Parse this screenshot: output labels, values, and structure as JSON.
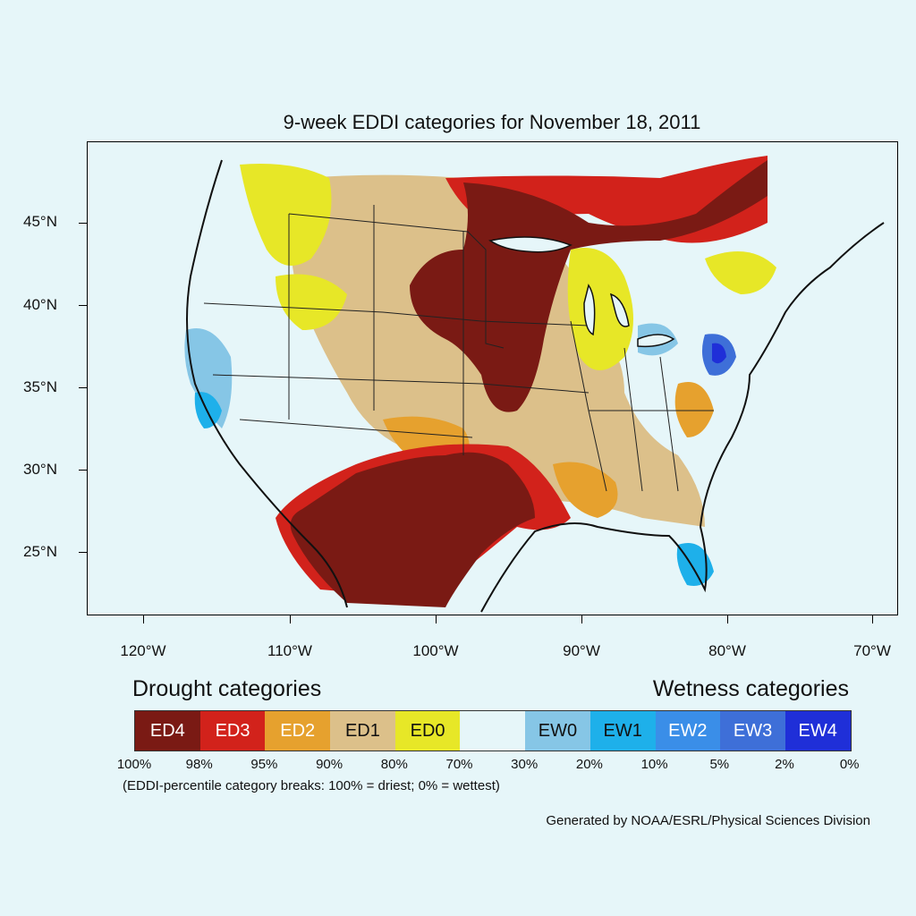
{
  "title": "9-week EDDI categories for November 18, 2011",
  "map": {
    "lat_labels": [
      "45°N",
      "40°N",
      "35°N",
      "30°N",
      "25°N"
    ],
    "lon_labels": [
      "120°W",
      "110°W",
      "100°W",
      "90°W",
      "80°W",
      "70°W"
    ],
    "colors": {
      "background": "#e6f6f9",
      "ED4": "#7a1a14",
      "ED3": "#d2221b",
      "ED2": "#e6a12e",
      "ED1": "#dcc08a",
      "ED0": "#e7e727",
      "neutral": "#e6f6f9",
      "EW0": "#86c6e6",
      "EW1": "#1eb0ea",
      "EW2": "#3a8ee8",
      "EW3": "#3e6fd8",
      "EW4": "#1f2fd8"
    }
  },
  "legend": {
    "drought_heading": "Drought categories",
    "wetness_heading": "Wetness categories",
    "categories": [
      {
        "label": "ED4",
        "color": "#7a1a14",
        "text_color": "#ffffff"
      },
      {
        "label": "ED3",
        "color": "#d2221b",
        "text_color": "#ffffff"
      },
      {
        "label": "ED2",
        "color": "#e6a12e",
        "text_color": "#ffffff"
      },
      {
        "label": "ED1",
        "color": "#dcc08a",
        "text_color": "#111111"
      },
      {
        "label": "ED0",
        "color": "#e7e727",
        "text_color": "#111111"
      },
      {
        "label": "",
        "color": "#e6f6f9",
        "text_color": "#111111"
      },
      {
        "label": "EW0",
        "color": "#86c6e6",
        "text_color": "#111111"
      },
      {
        "label": "EW1",
        "color": "#1eb0ea",
        "text_color": "#111111"
      },
      {
        "label": "EW2",
        "color": "#3a8ee8",
        "text_color": "#ffffff"
      },
      {
        "label": "EW3",
        "color": "#3e6fd8",
        "text_color": "#ffffff"
      },
      {
        "label": "EW4",
        "color": "#1f2fd8",
        "text_color": "#ffffff"
      }
    ],
    "breaks": [
      "100%",
      "98%",
      "95%",
      "90%",
      "80%",
      "70%",
      "30%",
      "20%",
      "10%",
      "5%",
      "2%",
      "0%"
    ],
    "note": "(EDDI-percentile category breaks: 100% = driest; 0% = wettest)"
  },
  "credit": "Generated by NOAA/ESRL/Physical Sciences Division"
}
